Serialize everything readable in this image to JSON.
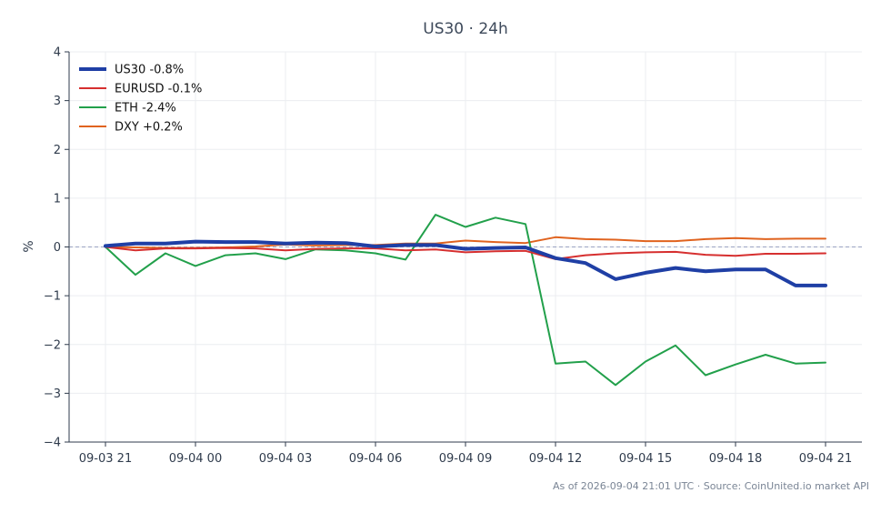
{
  "chart_data": {
    "type": "line",
    "title": "US30 · 24h",
    "xlabel": "",
    "ylabel": "%",
    "ylim": [
      -4,
      4
    ],
    "yticks": [
      -4,
      -3,
      -2,
      -1,
      0,
      1,
      2,
      3,
      4
    ],
    "ytick_labels": [
      "−4",
      "−3",
      "−2",
      "−1",
      "0",
      "1",
      "2",
      "3",
      "4"
    ],
    "x": [
      "09-03 21:00",
      "09-03 22:00",
      "09-03 23:00",
      "09-04 00:00",
      "09-04 01:00",
      "09-04 02:00",
      "09-04 03:00",
      "09-04 04:00",
      "09-04 05:00",
      "09-04 06:00",
      "09-04 07:00",
      "09-04 08:00",
      "09-04 09:00",
      "09-04 10:00",
      "09-04 11:00",
      "09-04 12:00",
      "09-04 13:00",
      "09-04 14:00",
      "09-04 15:00",
      "09-04 16:00",
      "09-04 17:00",
      "09-04 18:00",
      "09-04 19:00",
      "09-04 20:00",
      "09-04 21:00"
    ],
    "xticks": [
      "09-03 21",
      "09-04 00",
      "09-04 03",
      "09-04 06",
      "09-04 09",
      "09-04 12",
      "09-04 15",
      "09-04 18",
      "09-04 21"
    ],
    "xtick_index": [
      0,
      3,
      6,
      9,
      12,
      15,
      18,
      21,
      24
    ],
    "grid": true,
    "zero_line": true,
    "legend_position": "top-left",
    "series": [
      {
        "name": "US30 -0.8%",
        "color": "#1f3fa5",
        "width": 4,
        "values": [
          0.02,
          0.07,
          0.07,
          0.11,
          0.1,
          0.1,
          0.07,
          0.09,
          0.08,
          0.01,
          0.04,
          0.04,
          -0.04,
          -0.02,
          -0.01,
          -0.23,
          -0.33,
          -0.66,
          -0.53,
          -0.43,
          -0.5,
          -0.46,
          -0.46,
          -0.79,
          -0.79
        ]
      },
      {
        "name": "EURUSD -0.1%",
        "color": "#d62f2f",
        "width": 2,
        "values": [
          0.0,
          -0.07,
          -0.03,
          -0.03,
          -0.02,
          -0.03,
          -0.07,
          -0.04,
          -0.03,
          -0.03,
          -0.07,
          -0.05,
          -0.11,
          -0.09,
          -0.08,
          -0.25,
          -0.17,
          -0.13,
          -0.11,
          -0.1,
          -0.16,
          -0.18,
          -0.14,
          -0.14,
          -0.13
        ]
      },
      {
        "name": "ETH -2.4%",
        "color": "#22a04b",
        "width": 2,
        "values": [
          0.0,
          -0.57,
          -0.13,
          -0.39,
          -0.17,
          -0.13,
          -0.25,
          -0.05,
          -0.07,
          -0.13,
          -0.26,
          0.66,
          0.41,
          0.6,
          0.47,
          -2.39,
          -2.35,
          -2.83,
          -2.35,
          -2.02,
          -2.63,
          -2.41,
          -2.21,
          -2.39,
          -2.37
        ]
      },
      {
        "name": "DXY +0.2%",
        "color": "#e0631f",
        "width": 2,
        "values": [
          0.0,
          -0.01,
          -0.02,
          -0.02,
          -0.01,
          0.01,
          0.05,
          0.03,
          0.04,
          0.04,
          0.07,
          0.07,
          0.13,
          0.1,
          0.08,
          0.2,
          0.16,
          0.15,
          0.12,
          0.12,
          0.16,
          0.18,
          0.16,
          0.17,
          0.17
        ]
      }
    ]
  },
  "footer": "As of 2026-09-04 21:01 UTC · Source: CoinUnited.io market API",
  "colors": {
    "axis": "#2f3b4c",
    "grid": "#ebedf0",
    "zero_line": "#9aa3c2"
  }
}
